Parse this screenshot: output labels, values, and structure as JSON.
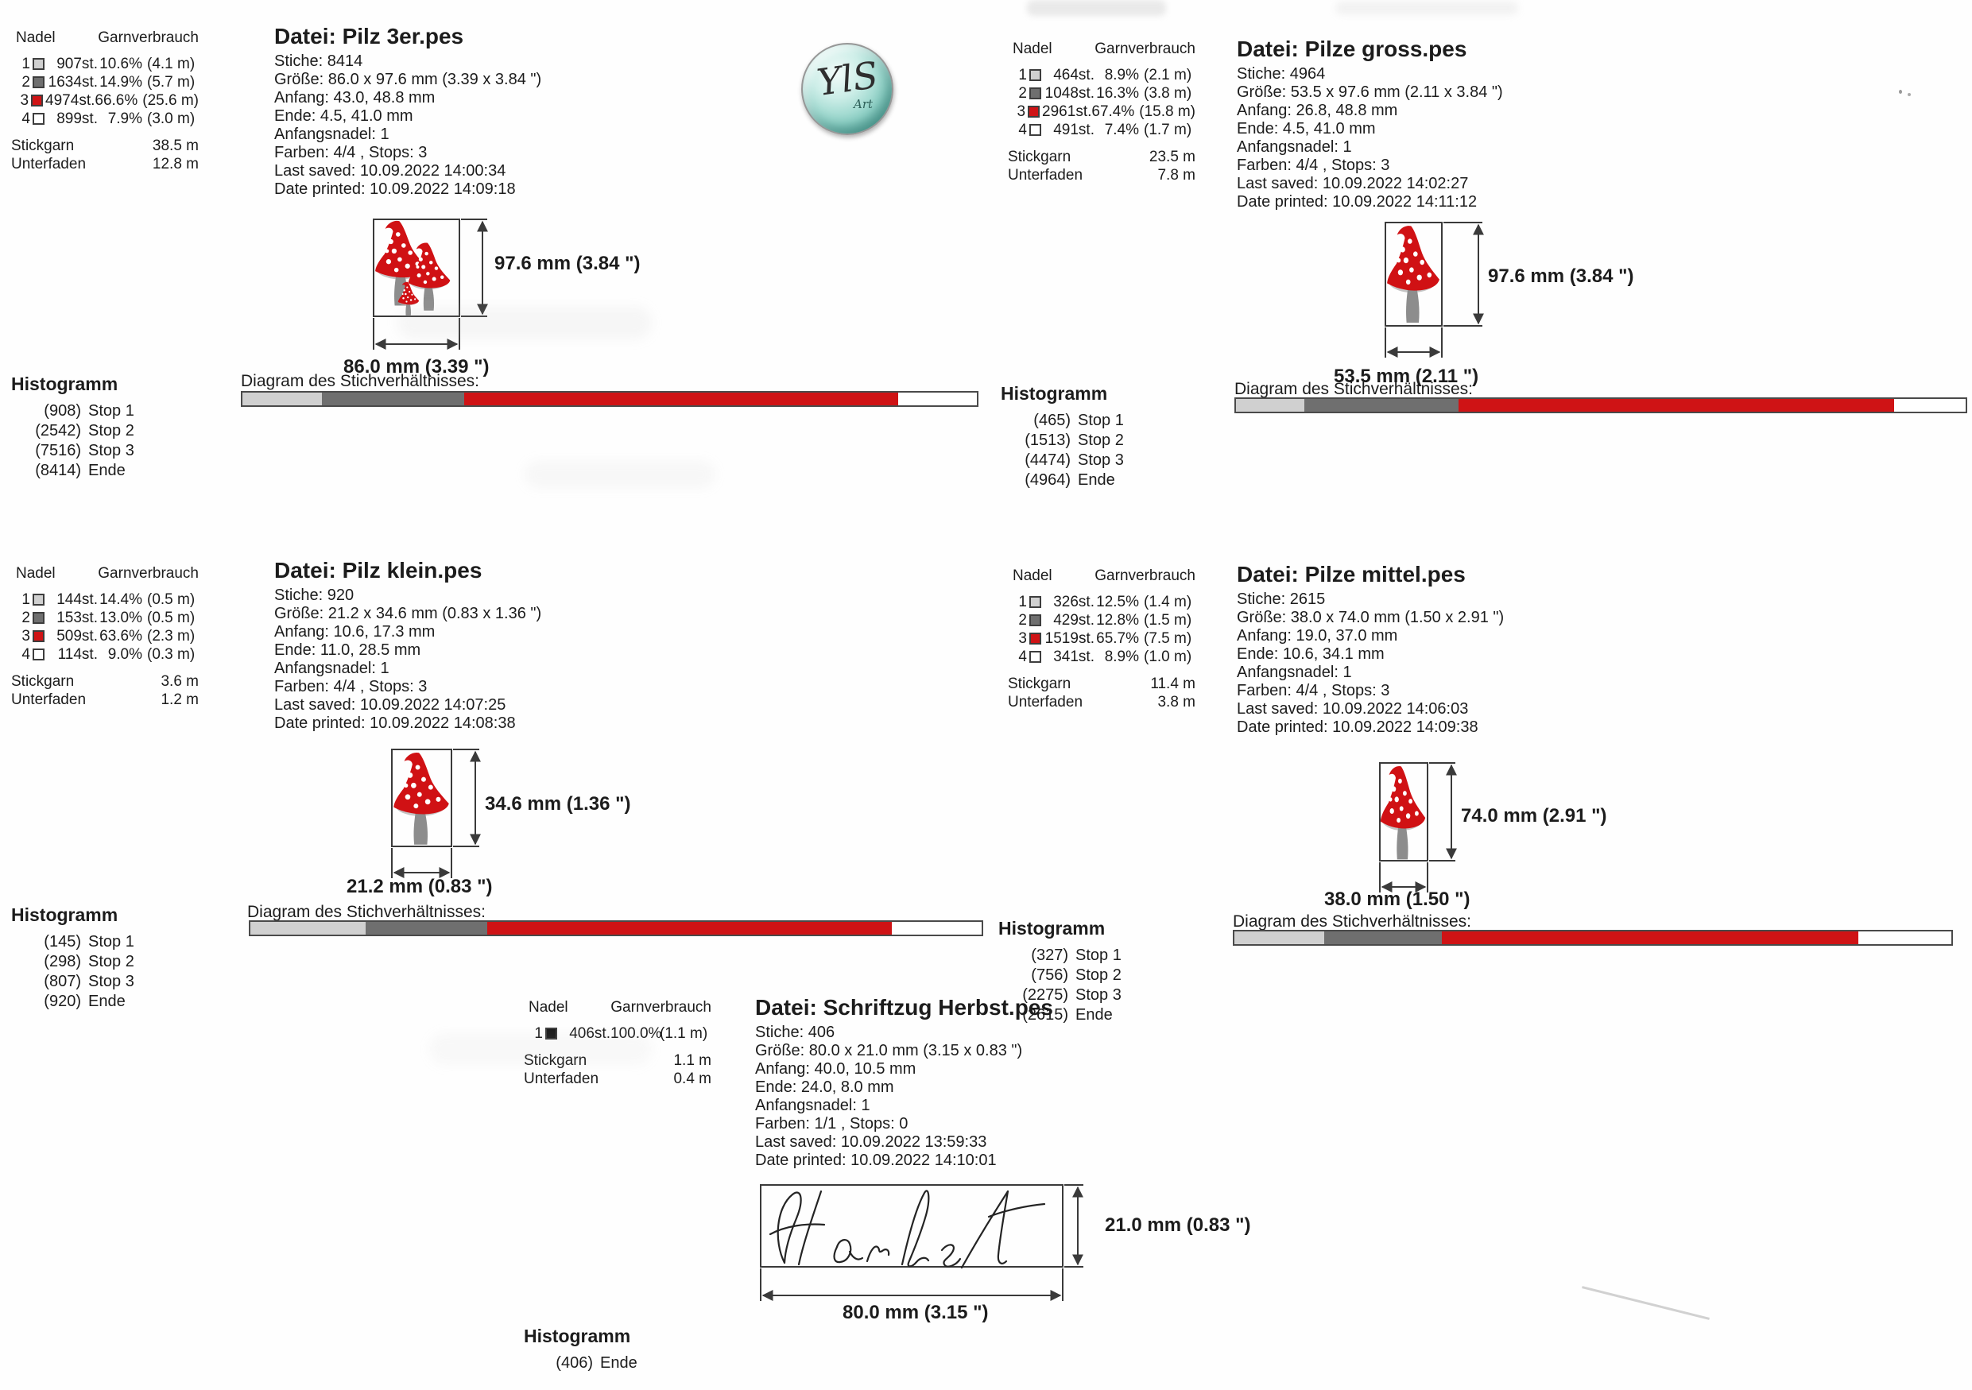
{
  "labels": {
    "nadel": "Nadel",
    "garnverbrauch": "Garnverbrauch",
    "stickgarn": "Stickgarn",
    "unterfaden": "Unterfaden",
    "histogramm": "Histogramm",
    "diagram": "Diagram des Stichverhältnisses:"
  },
  "logo": {
    "text": "YlS",
    "subtext": "Art"
  },
  "colors": {
    "needle_light_gray": "#d0d0d0",
    "needle_dark_gray": "#6f6f6f",
    "needle_red": "#cf1315",
    "needle_white": "#ffffff",
    "needle_black": "#1b1b1b",
    "bar_border": "#4a4a4a"
  },
  "panels": [
    {
      "file_label": "Datei: Pilz 3er.pes",
      "info_lines": [
        "Stiche: 8414",
        "Größe: 86.0 x 97.6 mm (3.39 x 3.84 \")",
        "Anfang: 43.0, 48.8 mm",
        "Ende: 4.5, 41.0 mm",
        "Anfangsnadel: 1",
        "Farben: 4/4 , Stops: 3",
        "Last saved: 10.09.2022 14:00:34",
        "Date printed: 10.09.2022 14:09:18"
      ],
      "needles": [
        {
          "num": "1",
          "color": "#d0d0d0",
          "stitches": "907st.",
          "pct": "10.6%",
          "length": "(4.1 m)"
        },
        {
          "num": "2",
          "color": "#6f6f6f",
          "stitches": "1634st.",
          "pct": "14.9%",
          "length": "(5.7 m)"
        },
        {
          "num": "3",
          "color": "#cf1315",
          "stitches": "4974st.",
          "pct": "66.6%",
          "length": "(25.6 m)"
        },
        {
          "num": "4",
          "color": "#ffffff",
          "stitches": "899st.",
          "pct": "7.9%",
          "length": "(3.0 m)"
        }
      ],
      "stickgarn_value": "38.5 m",
      "unterfaden_value": "12.8 m",
      "stops": [
        {
          "count": "(908)",
          "label": "Stop 1"
        },
        {
          "count": "(2542)",
          "label": "Stop 2"
        },
        {
          "count": "(7516)",
          "label": "Stop 3"
        },
        {
          "count": "(8414)",
          "label": "Ende"
        }
      ],
      "bar": [
        {
          "color": "#d0d0d0",
          "pct": 10.8
        },
        {
          "color": "#6f6f6f",
          "pct": 19.4
        },
        {
          "color": "#cf1315",
          "pct": 59.1
        },
        {
          "color": "#ffffff",
          "pct": 10.7
        }
      ],
      "height_label": "97.6 mm (3.84 \")",
      "width_label": "86.0 mm (3.39 \")"
    },
    {
      "file_label": "Datei: Pilze gross.pes",
      "info_lines": [
        "Stiche: 4964",
        "Größe: 53.5 x 97.6 mm (2.11 x 3.84 \")",
        "Anfang: 26.8, 48.8 mm",
        "Ende: 4.5, 41.0 mm",
        "Anfangsnadel: 1",
        "Farben: 4/4 , Stops: 3",
        "Last saved: 10.09.2022 14:02:27",
        "Date printed: 10.09.2022 14:11:12"
      ],
      "needles": [
        {
          "num": "1",
          "color": "#d0d0d0",
          "stitches": "464st.",
          "pct": "8.9%",
          "length": "(2.1 m)"
        },
        {
          "num": "2",
          "color": "#6f6f6f",
          "stitches": "1048st.",
          "pct": "16.3%",
          "length": "(3.8 m)"
        },
        {
          "num": "3",
          "color": "#cf1315",
          "stitches": "2961st.",
          "pct": "67.4%",
          "length": "(15.8 m)"
        },
        {
          "num": "4",
          "color": "#ffffff",
          "stitches": "491st.",
          "pct": "7.4%",
          "length": "(1.7 m)"
        }
      ],
      "stickgarn_value": "23.5 m",
      "unterfaden_value": "7.8 m",
      "stops": [
        {
          "count": "(465)",
          "label": "Stop 1"
        },
        {
          "count": "(1513)",
          "label": "Stop 2"
        },
        {
          "count": "(4474)",
          "label": "Stop 3"
        },
        {
          "count": "(4964)",
          "label": "Ende"
        }
      ],
      "bar": [
        {
          "color": "#d0d0d0",
          "pct": 9.4
        },
        {
          "color": "#6f6f6f",
          "pct": 21.1
        },
        {
          "color": "#cf1315",
          "pct": 59.7
        },
        {
          "color": "#ffffff",
          "pct": 9.8
        }
      ],
      "height_label": "97.6 mm (3.84 \")",
      "width_label": "53.5 mm (2.11 \")"
    },
    {
      "file_label": "Datei: Pilz klein.pes",
      "info_lines": [
        "Stiche: 920",
        "Größe: 21.2 x 34.6 mm (0.83 x 1.36 \")",
        "Anfang: 10.6, 17.3 mm",
        "Ende: 11.0, 28.5 mm",
        "Anfangsnadel: 1",
        "Farben: 4/4 , Stops: 3",
        "Last saved: 10.09.2022 14:07:25",
        "Date printed: 10.09.2022 14:08:38"
      ],
      "needles": [
        {
          "num": "1",
          "color": "#d0d0d0",
          "stitches": "144st.",
          "pct": "14.4%",
          "length": "(0.5 m)"
        },
        {
          "num": "2",
          "color": "#6f6f6f",
          "stitches": "153st.",
          "pct": "13.0%",
          "length": "(0.5 m)"
        },
        {
          "num": "3",
          "color": "#cf1315",
          "stitches": "509st.",
          "pct": "63.6%",
          "length": "(2.3 m)"
        },
        {
          "num": "4",
          "color": "#ffffff",
          "stitches": "114st.",
          "pct": "9.0%",
          "length": "(0.3 m)"
        }
      ],
      "stickgarn_value": "3.6 m",
      "unterfaden_value": "1.2 m",
      "stops": [
        {
          "count": "(145)",
          "label": "Stop 1"
        },
        {
          "count": "(298)",
          "label": "Stop 2"
        },
        {
          "count": "(807)",
          "label": "Stop 3"
        },
        {
          "count": "(920)",
          "label": "Ende"
        }
      ],
      "bar": [
        {
          "color": "#d0d0d0",
          "pct": 15.8
        },
        {
          "color": "#6f6f6f",
          "pct": 16.6
        },
        {
          "color": "#cf1315",
          "pct": 55.3
        },
        {
          "color": "#ffffff",
          "pct": 12.3
        }
      ],
      "height_label": "34.6 mm (1.36 \")",
      "width_label": "21.2 mm (0.83 \")"
    },
    {
      "file_label": "Datei: Pilze mittel.pes",
      "info_lines": [
        "Stiche: 2615",
        "Größe: 38.0 x 74.0 mm (1.50 x 2.91 \")",
        "Anfang: 19.0, 37.0 mm",
        "Ende: 10.6, 34.1 mm",
        "Anfangsnadel: 1",
        "Farben: 4/4 , Stops: 3",
        "Last saved: 10.09.2022 14:06:03",
        "Date printed: 10.09.2022 14:09:38"
      ],
      "needles": [
        {
          "num": "1",
          "color": "#d0d0d0",
          "stitches": "326st.",
          "pct": "12.5%",
          "length": "(1.4 m)"
        },
        {
          "num": "2",
          "color": "#6f6f6f",
          "stitches": "429st.",
          "pct": "12.8%",
          "length": "(1.5 m)"
        },
        {
          "num": "3",
          "color": "#cf1315",
          "stitches": "1519st.",
          "pct": "65.7%",
          "length": "(7.5 m)"
        },
        {
          "num": "4",
          "color": "#ffffff",
          "stitches": "341st.",
          "pct": "8.9%",
          "length": "(1.0 m)"
        }
      ],
      "stickgarn_value": "11.4 m",
      "unterfaden_value": "3.8 m",
      "stops": [
        {
          "count": "(327)",
          "label": "Stop 1"
        },
        {
          "count": "(756)",
          "label": "Stop 2"
        },
        {
          "count": "(2275)",
          "label": "Stop 3"
        },
        {
          "count": "(2615)",
          "label": "Ende"
        }
      ],
      "bar": [
        {
          "color": "#d0d0d0",
          "pct": 12.5
        },
        {
          "color": "#6f6f6f",
          "pct": 16.4
        },
        {
          "color": "#cf1315",
          "pct": 58.1
        },
        {
          "color": "#ffffff",
          "pct": 13.0
        }
      ],
      "height_label": "74.0 mm (2.91 \")",
      "width_label": "38.0 mm (1.50 \")"
    },
    {
      "file_label": "Datei: Schriftzug Herbst.pes",
      "info_lines": [
        "Stiche: 406",
        "Größe: 80.0 x 21.0 mm (3.15 x 0.83 \")",
        "Anfang: 40.0, 10.5 mm",
        "Ende: 24.0, 8.0 mm",
        "Anfangsnadel: 1",
        "Farben: 1/1 , Stops: 0",
        "Last saved: 10.09.2022 13:59:33",
        "Date printed: 10.09.2022 14:10:01"
      ],
      "needles": [
        {
          "num": "1",
          "color": "#1b1b1b",
          "stitches": "406st.",
          "pct": "100.0%",
          "length": "(1.1 m)"
        }
      ],
      "stickgarn_value": "1.1 m",
      "unterfaden_value": "0.4 m",
      "stops": [
        {
          "count": "(406)",
          "label": "Ende"
        }
      ],
      "bar": [],
      "height_label": "21.0 mm (0.83 \")",
      "width_label": "80.0 mm (3.15 \")"
    }
  ]
}
